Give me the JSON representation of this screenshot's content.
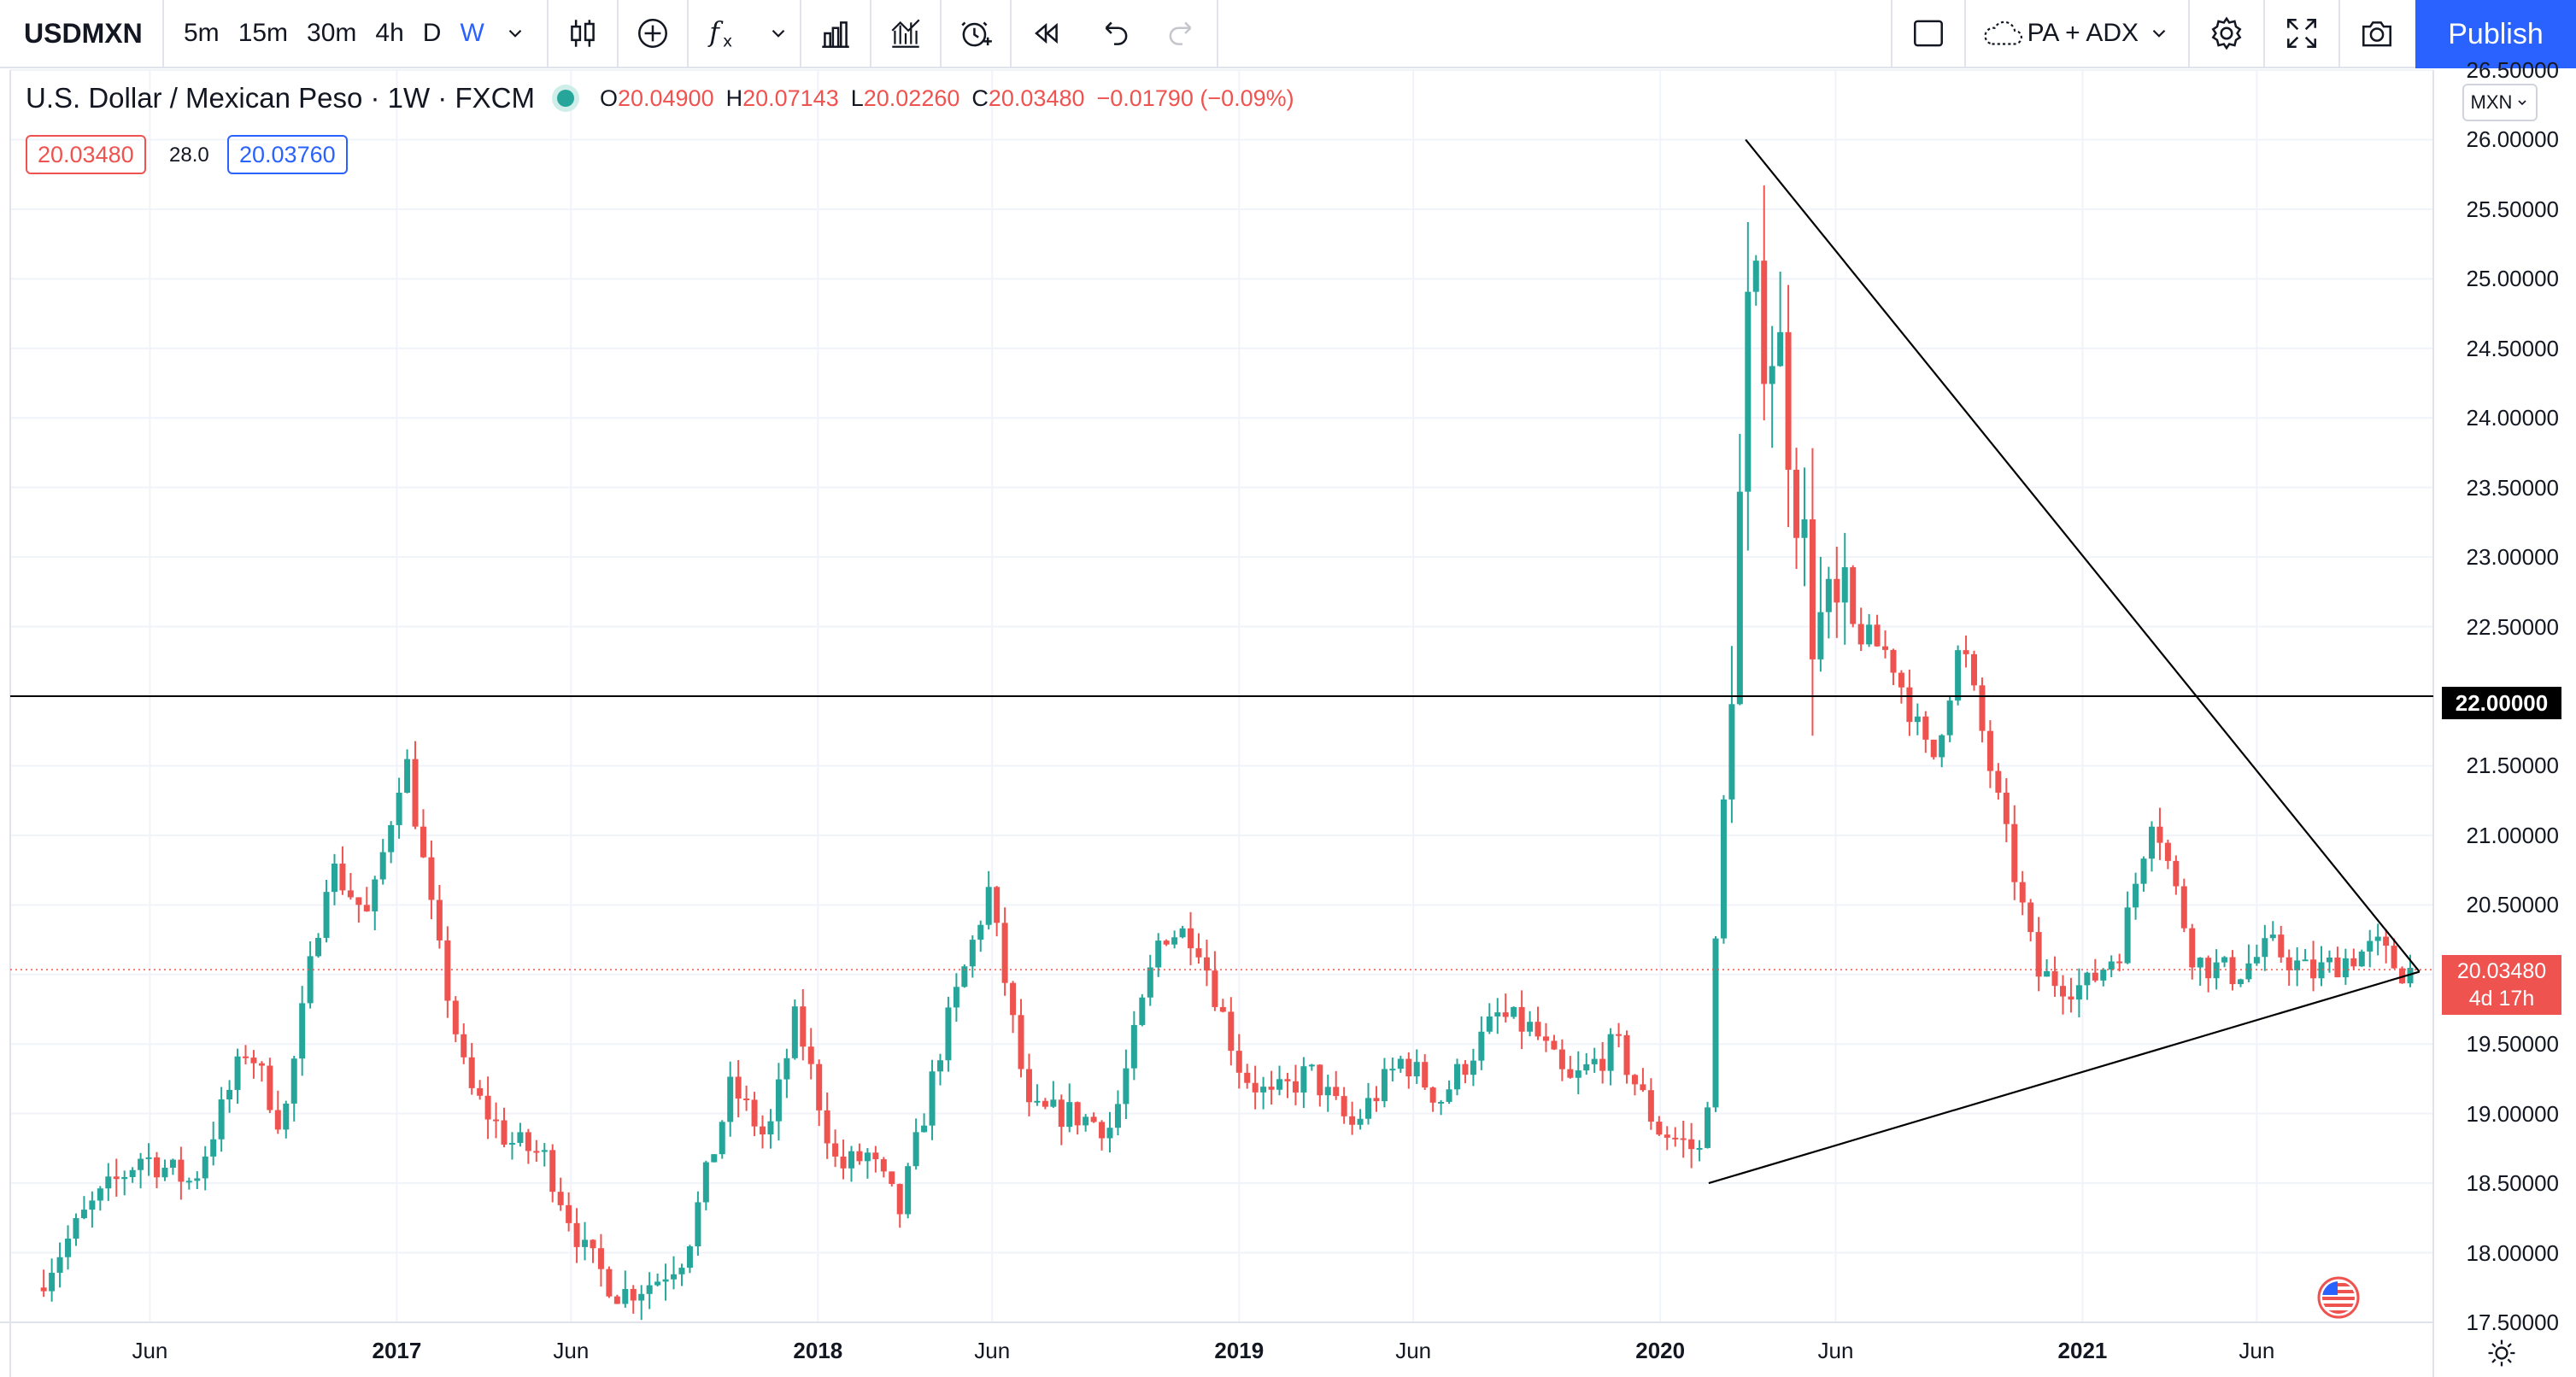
{
  "toolbar": {
    "symbol": "USDMXN",
    "intervals": [
      "5m",
      "15m",
      "30m",
      "4h",
      "D",
      "W"
    ],
    "active_interval": "W",
    "icons": [
      "chevron-down-icon",
      "candlestick-icon",
      "add-compare-icon",
      "indicators-icon",
      "chevron-down-icon",
      "financials-icon",
      "templates-icon",
      "alert-icon",
      "replay-icon",
      "undo-icon",
      "redo-icon",
      "layout-icon",
      "cloud-icon",
      "chevron-down-icon",
      "settings-icon",
      "fullscreen-icon",
      "camera-icon"
    ],
    "layout_name": "PA + ADX",
    "publish_label": "Publish"
  },
  "legend": {
    "title": "U.S. Dollar / Mexican Peso · 1W · FXCM",
    "open_label": "O",
    "open": "20.04900",
    "high_label": "H",
    "high": "20.07143",
    "low_label": "L",
    "low": "20.02260",
    "close_label": "C",
    "close": "20.03480",
    "change": "−0.01790 (−0.09%)",
    "bid": "20.03480",
    "spread": "28.0",
    "ask": "20.03760"
  },
  "price_axis": {
    "currency": "MXN",
    "labels": [
      "26.50000",
      "26.00000",
      "25.50000",
      "25.00000",
      "24.50000",
      "24.00000",
      "23.50000",
      "23.00000",
      "22.50000",
      "22.00000",
      "21.50000",
      "21.00000",
      "20.50000",
      "20.00000",
      "19.50000",
      "19.00000",
      "18.50000",
      "18.00000",
      "17.50000"
    ],
    "horizontal_line_label": "22.00000",
    "last_price_label": "20.03480",
    "countdown": "4d 17h"
  },
  "time_axis": {
    "labels": [
      "Jun",
      "2017",
      "Jun",
      "2018",
      "Jun",
      "2019",
      "Jun",
      "2020",
      "Jun",
      "2021",
      "Jun"
    ]
  },
  "colors": {
    "up": "#26a69a",
    "down": "#ef5350",
    "accent": "#2962ff"
  },
  "chart_data": {
    "type": "candlestick",
    "ylim": [
      17.5,
      26.5
    ],
    "horizontal_line": 22.0,
    "last_price": 20.0348,
    "x": [
      "2016-06",
      "2017-01",
      "2017-06",
      "2018-01",
      "2018-06",
      "2019-01",
      "2019-06",
      "2020-01",
      "2020-06",
      "2021-01",
      "2021-06"
    ],
    "series": [
      {
        "anchor_points": [
          [
            "2016-03-01",
            17.75
          ],
          [
            "2016-04-15",
            18.3
          ],
          [
            "2016-06-01",
            18.7
          ],
          [
            "2016-07-15",
            18.5
          ],
          [
            "2016-09-01",
            19.5
          ],
          [
            "2016-10-01",
            18.9
          ],
          [
            "2016-11-10",
            20.8
          ],
          [
            "2016-12-15",
            20.4
          ],
          [
            "2017-01-15",
            21.6
          ],
          [
            "2017-02-10",
            20.3
          ],
          [
            "2017-03-10",
            19.2
          ],
          [
            "2017-04-15",
            18.8
          ],
          [
            "2017-05-15",
            18.7
          ],
          [
            "2017-06-20",
            18.0
          ],
          [
            "2017-07-20",
            17.7
          ],
          [
            "2017-08-20",
            17.8
          ],
          [
            "2017-09-15",
            18.0
          ],
          [
            "2017-10-25",
            19.2
          ],
          [
            "2017-11-25",
            18.8
          ],
          [
            "2017-12-20",
            19.7
          ],
          [
            "2018-01-25",
            18.6
          ],
          [
            "2018-02-20",
            18.7
          ],
          [
            "2018-03-20",
            18.3
          ],
          [
            "2018-04-25",
            19.5
          ],
          [
            "2018-06-05",
            20.6
          ],
          [
            "2018-07-10",
            19.0
          ],
          [
            "2018-08-15",
            19.0
          ],
          [
            "2018-09-20",
            18.9
          ],
          [
            "2018-11-01",
            20.3
          ],
          [
            "2018-12-01",
            20.3
          ],
          [
            "2019-01-10",
            19.3
          ],
          [
            "2019-02-05",
            19.1
          ],
          [
            "2019-03-10",
            19.3
          ],
          [
            "2019-04-15",
            18.9
          ],
          [
            "2019-05-30",
            19.4
          ],
          [
            "2019-07-01",
            19.1
          ],
          [
            "2019-08-20",
            19.7
          ],
          [
            "2019-09-20",
            19.6
          ],
          [
            "2019-10-20",
            19.2
          ],
          [
            "2019-12-01",
            19.5
          ],
          [
            "2020-01-05",
            18.9
          ],
          [
            "2020-02-15",
            18.7
          ],
          [
            "2020-03-15",
            23.0
          ],
          [
            "2020-03-25",
            24.8
          ],
          [
            "2020-04-20",
            24.5
          ],
          [
            "2020-05-20",
            22.5
          ],
          [
            "2020-06-20",
            22.5
          ],
          [
            "2020-07-25",
            22.3
          ],
          [
            "2020-08-30",
            21.5
          ],
          [
            "2020-09-25",
            22.4
          ],
          [
            "2020-10-25",
            21.3
          ],
          [
            "2020-11-30",
            20.0
          ],
          [
            "2021-01-10",
            19.9
          ],
          [
            "2021-02-10",
            20.2
          ],
          [
            "2021-03-10",
            21.2
          ],
          [
            "2021-04-15",
            20.1
          ],
          [
            "2021-05-20",
            20.0
          ],
          [
            "2021-06-20",
            20.2
          ],
          [
            "2021-07-25",
            20.0
          ],
          [
            "2021-08-20",
            20.1
          ],
          [
            "2021-09-20",
            20.2
          ],
          [
            "2021-10-10",
            20.03
          ]
        ]
      }
    ],
    "trendlines": [
      {
        "from": [
          "2020-03-15",
          26.0
        ],
        "to": [
          "2021-10-20",
          20.02
        ]
      },
      {
        "from": [
          "2020-02-12",
          18.5
        ],
        "to": [
          "2021-10-20",
          20.02
        ]
      }
    ]
  }
}
